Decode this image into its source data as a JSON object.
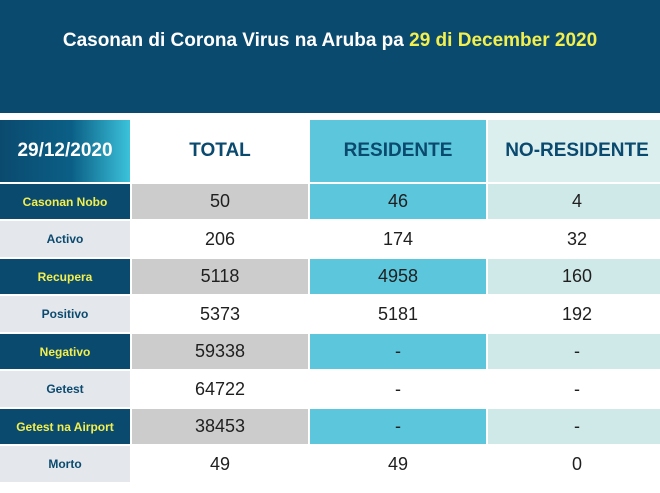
{
  "header": {
    "title_prefix": "Casonan di Corona Virus na Aruba pa",
    "title_date": "29 di December 2020",
    "accent_color": "#f3ef4d",
    "brand_color": "#0b4a6f"
  },
  "table": {
    "corner_label": "29/12/2020",
    "columns": [
      "TOTAL",
      "RESIDENTE",
      "NO-RESIDENTE"
    ],
    "rows": [
      {
        "label": "Casonan Nobo",
        "values": [
          "50",
          "46",
          "4"
        ]
      },
      {
        "label": "Activo",
        "values": [
          "206",
          "174",
          "32"
        ]
      },
      {
        "label": "Recupera",
        "values": [
          "5118",
          "4958",
          "160"
        ]
      },
      {
        "label": "Positivo",
        "values": [
          "5373",
          "5181",
          "192"
        ]
      },
      {
        "label": "Negativo",
        "values": [
          "59338",
          "-",
          "-"
        ]
      },
      {
        "label": "Getest",
        "values": [
          "64722",
          "-",
          "-"
        ]
      },
      {
        "label": "Getest na Airport",
        "values": [
          "38453",
          "-",
          "-"
        ]
      },
      {
        "label": "Morto",
        "values": [
          "49",
          "49",
          "0"
        ]
      }
    ]
  }
}
